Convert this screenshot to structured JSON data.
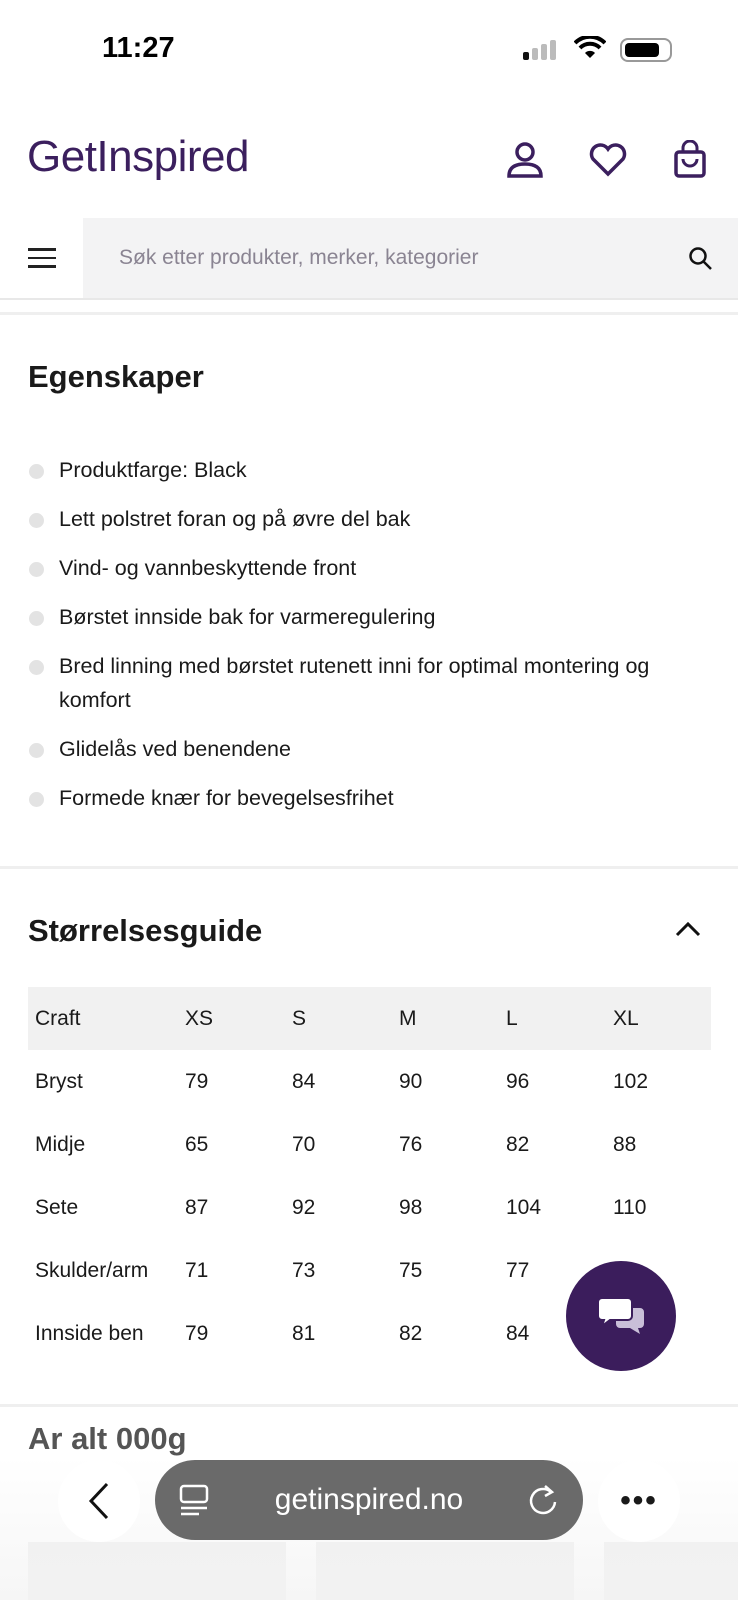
{
  "status_bar": {
    "time": "11:27"
  },
  "header": {
    "logo": "GetInspired"
  },
  "search": {
    "placeholder": "Søk etter produkter, merker, kategorier"
  },
  "features": {
    "title": "Egenskaper",
    "items": [
      "Produktfarge: Black",
      "Lett polstret foran og på øvre del bak",
      "Vind- og vannbeskyttende front",
      "Børstet innside bak for varmeregulering",
      "Bred linning med børstet rutenett inni for optimal montering og komfort",
      "Glidelås ved benendene",
      "Formede knær for bevegelsesfrihet"
    ]
  },
  "size_guide": {
    "title": "Størrelsesguide",
    "headers": [
      "Craft",
      "XS",
      "S",
      "M",
      "L",
      "XL"
    ],
    "rows": [
      [
        "Bryst",
        "79",
        "84",
        "90",
        "96",
        "102"
      ],
      [
        "Midje",
        "65",
        "70",
        "76",
        "82",
        "88"
      ],
      [
        "Sete",
        "87",
        "92",
        "98",
        "104",
        "110"
      ],
      [
        "Skulder/arm",
        "71",
        "73",
        "75",
        "77",
        ""
      ],
      [
        "Innside ben",
        "79",
        "81",
        "82",
        "84",
        ""
      ]
    ]
  },
  "next_section": {
    "title_partial": "Ar alt 000g"
  },
  "browser": {
    "url": "getinspired.no"
  },
  "colors": {
    "brand": "#3b1f5e"
  }
}
